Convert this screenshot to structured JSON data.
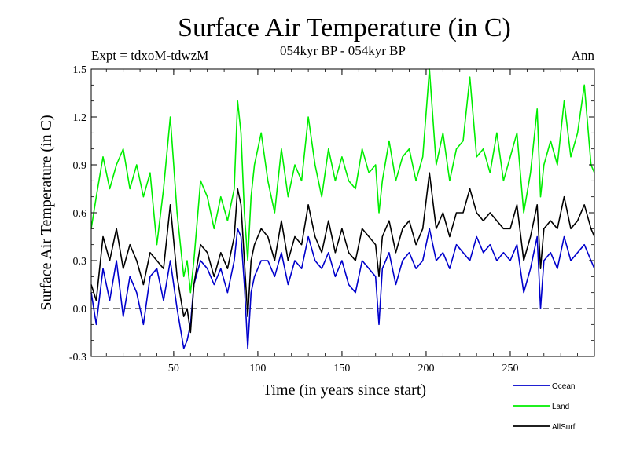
{
  "chart_data": {
    "type": "line",
    "title": "Surface Air Temperature (in C)",
    "subtitle": "054kyr BP - 054kyr BP",
    "expt_label": "Expt = tdxoM-tdwzM",
    "season_label": "Ann",
    "xlabel": "Time (in years since start)",
    "ylabel": "Surface Air Temperature (in C)",
    "xlim": [
      1,
      300
    ],
    "ylim": [
      -0.3,
      1.5
    ],
    "xticks": [
      50,
      100,
      150,
      200,
      250
    ],
    "yticks": [
      -0.3,
      0.0,
      0.3,
      0.6,
      0.9,
      1.2,
      1.5
    ],
    "ytick_labels": [
      "-0.3",
      "0.0",
      "0.3",
      "0.6",
      "0.9",
      "1.2",
      "1.5"
    ],
    "zero_line": true,
    "legend_position": "bottom-right",
    "series": [
      {
        "name": "Ocean",
        "color": "#0000cc",
        "x": [
          1,
          4,
          8,
          12,
          16,
          20,
          24,
          28,
          32,
          36,
          40,
          44,
          48,
          52,
          56,
          58,
          60,
          62,
          66,
          70,
          74,
          78,
          82,
          86,
          88,
          90,
          92,
          94,
          96,
          98,
          102,
          106,
          110,
          114,
          118,
          122,
          126,
          130,
          134,
          138,
          142,
          146,
          150,
          154,
          158,
          162,
          166,
          170,
          172,
          174,
          178,
          182,
          186,
          190,
          194,
          198,
          202,
          206,
          210,
          214,
          218,
          222,
          226,
          230,
          234,
          238,
          242,
          246,
          250,
          254,
          258,
          262,
          266,
          268,
          270,
          274,
          278,
          282,
          286,
          290,
          294,
          298,
          300
        ],
        "values": [
          0.1,
          -0.1,
          0.25,
          0.05,
          0.3,
          -0.05,
          0.2,
          0.1,
          -0.1,
          0.2,
          0.25,
          0.05,
          0.3,
          0.0,
          -0.25,
          -0.2,
          -0.1,
          0.15,
          0.3,
          0.25,
          0.15,
          0.25,
          0.1,
          0.3,
          0.5,
          0.45,
          0.15,
          -0.25,
          0.1,
          0.2,
          0.3,
          0.3,
          0.2,
          0.35,
          0.15,
          0.3,
          0.25,
          0.45,
          0.3,
          0.25,
          0.35,
          0.2,
          0.3,
          0.15,
          0.1,
          0.3,
          0.25,
          0.2,
          -0.1,
          0.25,
          0.35,
          0.15,
          0.3,
          0.35,
          0.25,
          0.3,
          0.5,
          0.3,
          0.35,
          0.25,
          0.4,
          0.35,
          0.3,
          0.45,
          0.35,
          0.4,
          0.3,
          0.35,
          0.3,
          0.4,
          0.1,
          0.25,
          0.45,
          0.0,
          0.3,
          0.35,
          0.25,
          0.45,
          0.3,
          0.35,
          0.4,
          0.3,
          0.25
        ]
      },
      {
        "name": "Land",
        "color": "#00ee00",
        "x": [
          1,
          4,
          8,
          12,
          16,
          20,
          24,
          28,
          32,
          36,
          40,
          44,
          48,
          52,
          56,
          58,
          60,
          62,
          66,
          70,
          74,
          78,
          82,
          86,
          88,
          90,
          92,
          94,
          96,
          98,
          102,
          106,
          110,
          114,
          118,
          122,
          126,
          130,
          134,
          138,
          142,
          146,
          150,
          154,
          158,
          162,
          166,
          170,
          172,
          174,
          178,
          182,
          186,
          190,
          194,
          198,
          202,
          206,
          210,
          214,
          218,
          222,
          226,
          230,
          234,
          238,
          242,
          246,
          250,
          254,
          258,
          262,
          266,
          268,
          270,
          274,
          278,
          282,
          286,
          290,
          294,
          298,
          300
        ],
        "values": [
          0.5,
          0.7,
          0.95,
          0.75,
          0.9,
          1.0,
          0.75,
          0.9,
          0.7,
          0.85,
          0.4,
          0.75,
          1.2,
          0.6,
          0.2,
          0.3,
          0.1,
          0.3,
          0.8,
          0.7,
          0.5,
          0.7,
          0.55,
          0.75,
          1.3,
          1.1,
          0.6,
          0.3,
          0.7,
          0.9,
          1.1,
          0.8,
          0.6,
          1.0,
          0.7,
          0.9,
          0.8,
          1.2,
          0.9,
          0.7,
          1.0,
          0.8,
          0.95,
          0.8,
          0.75,
          1.0,
          0.85,
          0.9,
          0.6,
          0.8,
          1.05,
          0.8,
          0.95,
          1.0,
          0.8,
          0.95,
          1.5,
          0.9,
          1.1,
          0.8,
          1.0,
          1.05,
          1.45,
          0.95,
          1.0,
          0.85,
          1.1,
          0.8,
          0.95,
          1.1,
          0.6,
          0.85,
          1.25,
          0.7,
          0.9,
          1.05,
          0.9,
          1.3,
          0.95,
          1.1,
          1.4,
          0.9,
          0.85
        ]
      },
      {
        "name": "AllSurf",
        "color": "#000000",
        "x": [
          1,
          4,
          8,
          12,
          16,
          20,
          24,
          28,
          32,
          36,
          40,
          44,
          48,
          52,
          56,
          58,
          60,
          62,
          66,
          70,
          74,
          78,
          82,
          86,
          88,
          90,
          92,
          94,
          96,
          98,
          102,
          106,
          110,
          114,
          118,
          122,
          126,
          130,
          134,
          138,
          142,
          146,
          150,
          154,
          158,
          162,
          166,
          170,
          172,
          174,
          178,
          182,
          186,
          190,
          194,
          198,
          202,
          206,
          210,
          214,
          218,
          222,
          226,
          230,
          234,
          238,
          242,
          246,
          250,
          254,
          258,
          262,
          266,
          268,
          270,
          274,
          278,
          282,
          286,
          290,
          294,
          298,
          300
        ],
        "values": [
          0.15,
          0.05,
          0.45,
          0.3,
          0.5,
          0.25,
          0.4,
          0.3,
          0.15,
          0.35,
          0.3,
          0.25,
          0.65,
          0.2,
          -0.05,
          0.0,
          -0.15,
          0.15,
          0.4,
          0.35,
          0.2,
          0.35,
          0.25,
          0.45,
          0.75,
          0.65,
          0.3,
          -0.05,
          0.3,
          0.4,
          0.5,
          0.45,
          0.3,
          0.55,
          0.3,
          0.45,
          0.4,
          0.65,
          0.45,
          0.35,
          0.55,
          0.35,
          0.5,
          0.35,
          0.3,
          0.5,
          0.45,
          0.4,
          0.2,
          0.45,
          0.55,
          0.35,
          0.5,
          0.55,
          0.4,
          0.5,
          0.85,
          0.5,
          0.6,
          0.45,
          0.6,
          0.6,
          0.75,
          0.6,
          0.55,
          0.6,
          0.55,
          0.5,
          0.5,
          0.65,
          0.3,
          0.45,
          0.65,
          0.25,
          0.5,
          0.55,
          0.5,
          0.7,
          0.5,
          0.55,
          0.65,
          0.5,
          0.45
        ]
      }
    ]
  }
}
